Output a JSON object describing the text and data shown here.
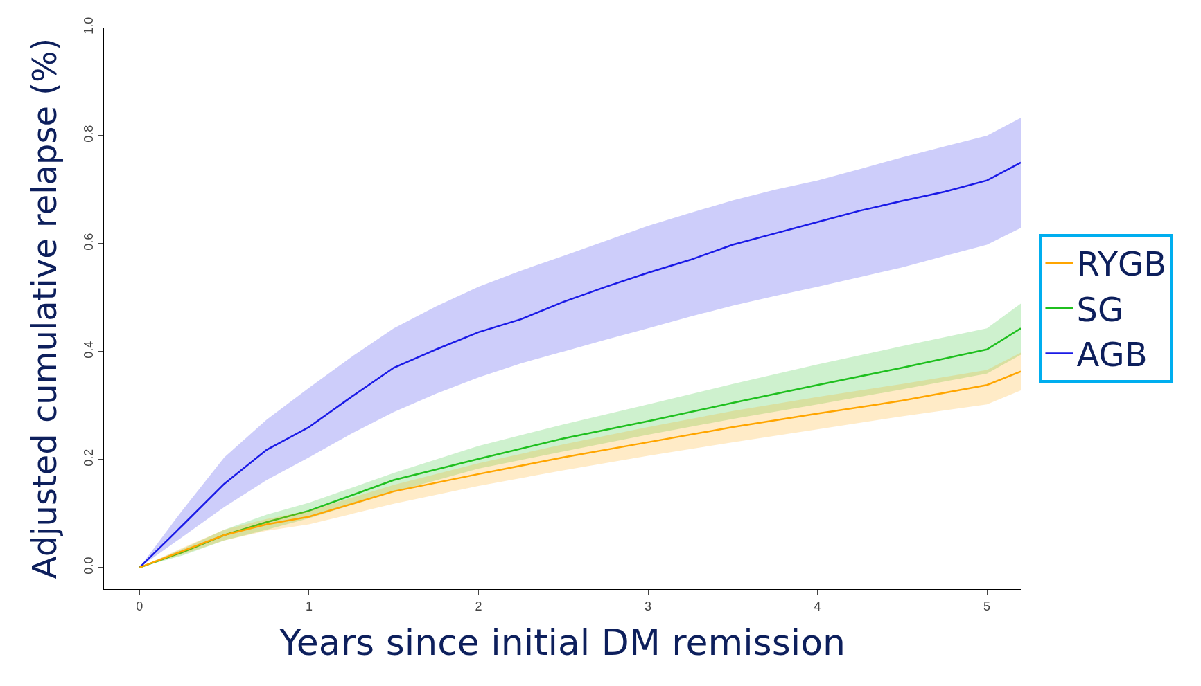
{
  "chart_data": {
    "type": "line",
    "xlabel": "Years since initial DM remission",
    "ylabel": "Adjusted cumulative relapse (%)",
    "xlim": [
      -0.21,
      5.2
    ],
    "ylim": [
      -0.04,
      1.0
    ],
    "xticks": [
      0,
      1,
      2,
      3,
      4,
      5
    ],
    "yticks": [
      {
        "value": 0,
        "label": "0.0"
      },
      {
        "value": 0.2,
        "label": "0.2"
      },
      {
        "value": 0.4,
        "label": "0.4"
      },
      {
        "value": 0.6,
        "label": "0.6"
      },
      {
        "value": 0.8,
        "label": "0.8"
      },
      {
        "value": 1,
        "label": "1.0"
      }
    ],
    "grid": false,
    "legend": "right",
    "marker": "none",
    "line_style": "solid",
    "series": [
      {
        "name": "AGB",
        "color": "#1a1ae6",
        "x": [
          0,
          0.25,
          0.5,
          0.75,
          1,
          1.25,
          1.5,
          1.75,
          2,
          2.25,
          2.5,
          2.75,
          3,
          3.25,
          3.5,
          3.75,
          4,
          4.25,
          4.5,
          4.75,
          5,
          5.2
        ],
        "values": [
          0,
          0.077,
          0.155,
          0.218,
          0.26,
          0.316,
          0.37,
          0.404,
          0.436,
          0.46,
          0.492,
          0.52,
          0.546,
          0.57,
          0.598,
          0.619,
          0.64,
          0.661,
          0.679,
          0.696,
          0.717,
          0.75
        ],
        "lower": [
          0,
          0.056,
          0.112,
          0.162,
          0.204,
          0.248,
          0.288,
          0.322,
          0.352,
          0.378,
          0.4,
          0.422,
          0.443,
          0.465,
          0.485,
          0.503,
          0.52,
          0.538,
          0.556,
          0.577,
          0.598,
          0.629
        ],
        "upper": [
          0,
          0.105,
          0.204,
          0.274,
          0.333,
          0.39,
          0.443,
          0.484,
          0.52,
          0.55,
          0.577,
          0.605,
          0.633,
          0.657,
          0.68,
          0.7,
          0.717,
          0.738,
          0.76,
          0.78,
          0.8,
          0.833
        ]
      },
      {
        "name": "SG",
        "color": "#1fbf1f",
        "x": [
          0,
          0.25,
          0.5,
          0.75,
          1,
          1.5,
          2,
          2.5,
          3,
          3.5,
          4,
          4.5,
          5,
          5.2
        ],
        "values": [
          0,
          0.028,
          0.06,
          0.084,
          0.105,
          0.162,
          0.201,
          0.239,
          0.271,
          0.305,
          0.338,
          0.37,
          0.404,
          0.443
        ],
        "lower": [
          0,
          0.022,
          0.05,
          0.07,
          0.091,
          0.14,
          0.183,
          0.215,
          0.246,
          0.275,
          0.302,
          0.33,
          0.359,
          0.394
        ],
        "upper": [
          0,
          0.034,
          0.07,
          0.098,
          0.12,
          0.175,
          0.225,
          0.265,
          0.302,
          0.34,
          0.376,
          0.41,
          0.443,
          0.489
        ]
      },
      {
        "name": "RYGB",
        "color": "#ffa500",
        "x": [
          0,
          0.25,
          0.5,
          0.75,
          1,
          1.5,
          2,
          2.5,
          3,
          3.5,
          4,
          4.5,
          5,
          5.2
        ],
        "values": [
          0,
          0.03,
          0.06,
          0.08,
          0.094,
          0.141,
          0.173,
          0.204,
          0.232,
          0.26,
          0.285,
          0.309,
          0.338,
          0.363
        ],
        "lower": [
          0,
          0.024,
          0.05,
          0.068,
          0.08,
          0.118,
          0.151,
          0.18,
          0.207,
          0.232,
          0.256,
          0.28,
          0.302,
          0.328
        ],
        "upper": [
          0,
          0.036,
          0.07,
          0.09,
          0.105,
          0.153,
          0.193,
          0.228,
          0.26,
          0.29,
          0.316,
          0.34,
          0.366,
          0.398
        ]
      }
    ]
  }
}
